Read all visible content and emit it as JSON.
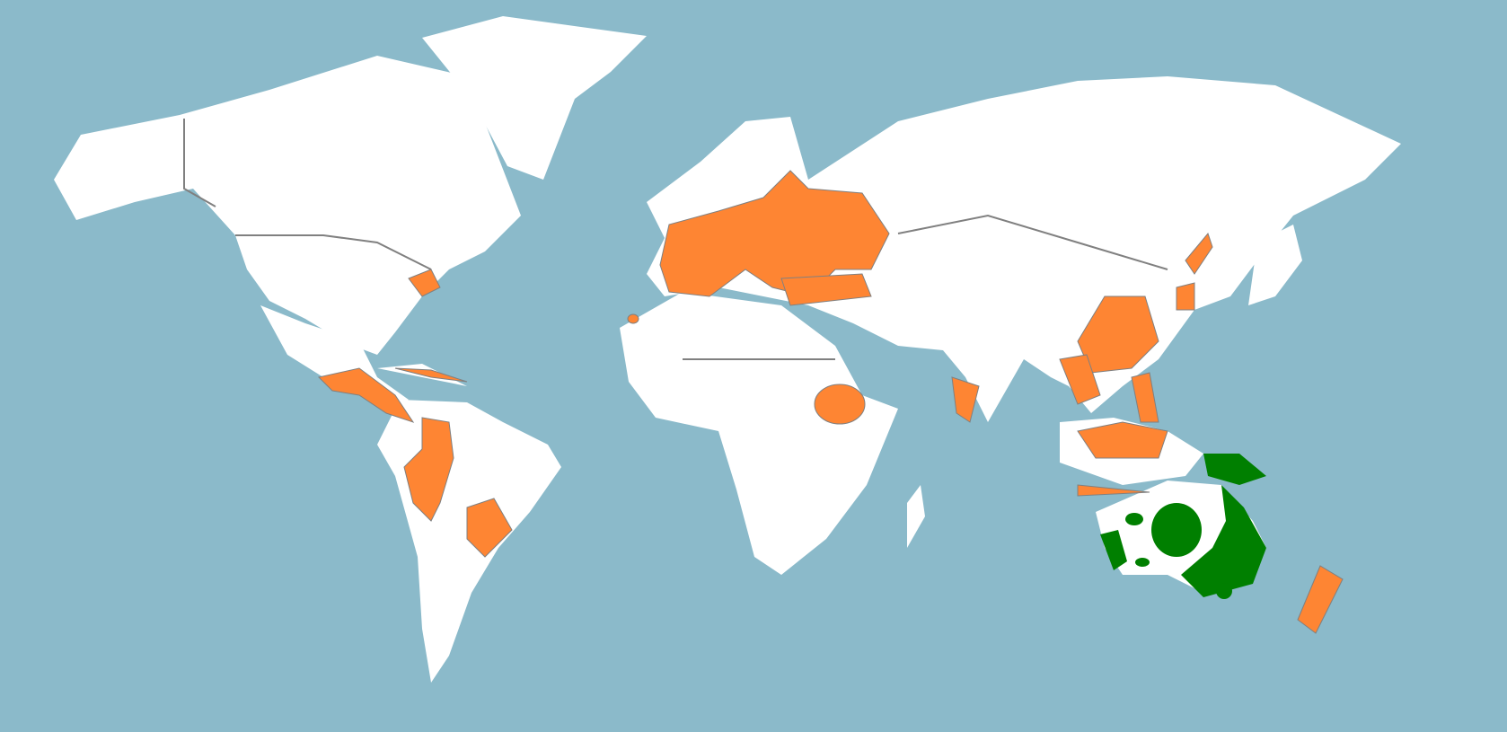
{
  "map": {
    "colors": {
      "ocean": "#8bbaca",
      "land": "#ffffff",
      "border": "#808080",
      "highlight_orange": "#fe8533",
      "highlight_green": "#007f00"
    }
  }
}
